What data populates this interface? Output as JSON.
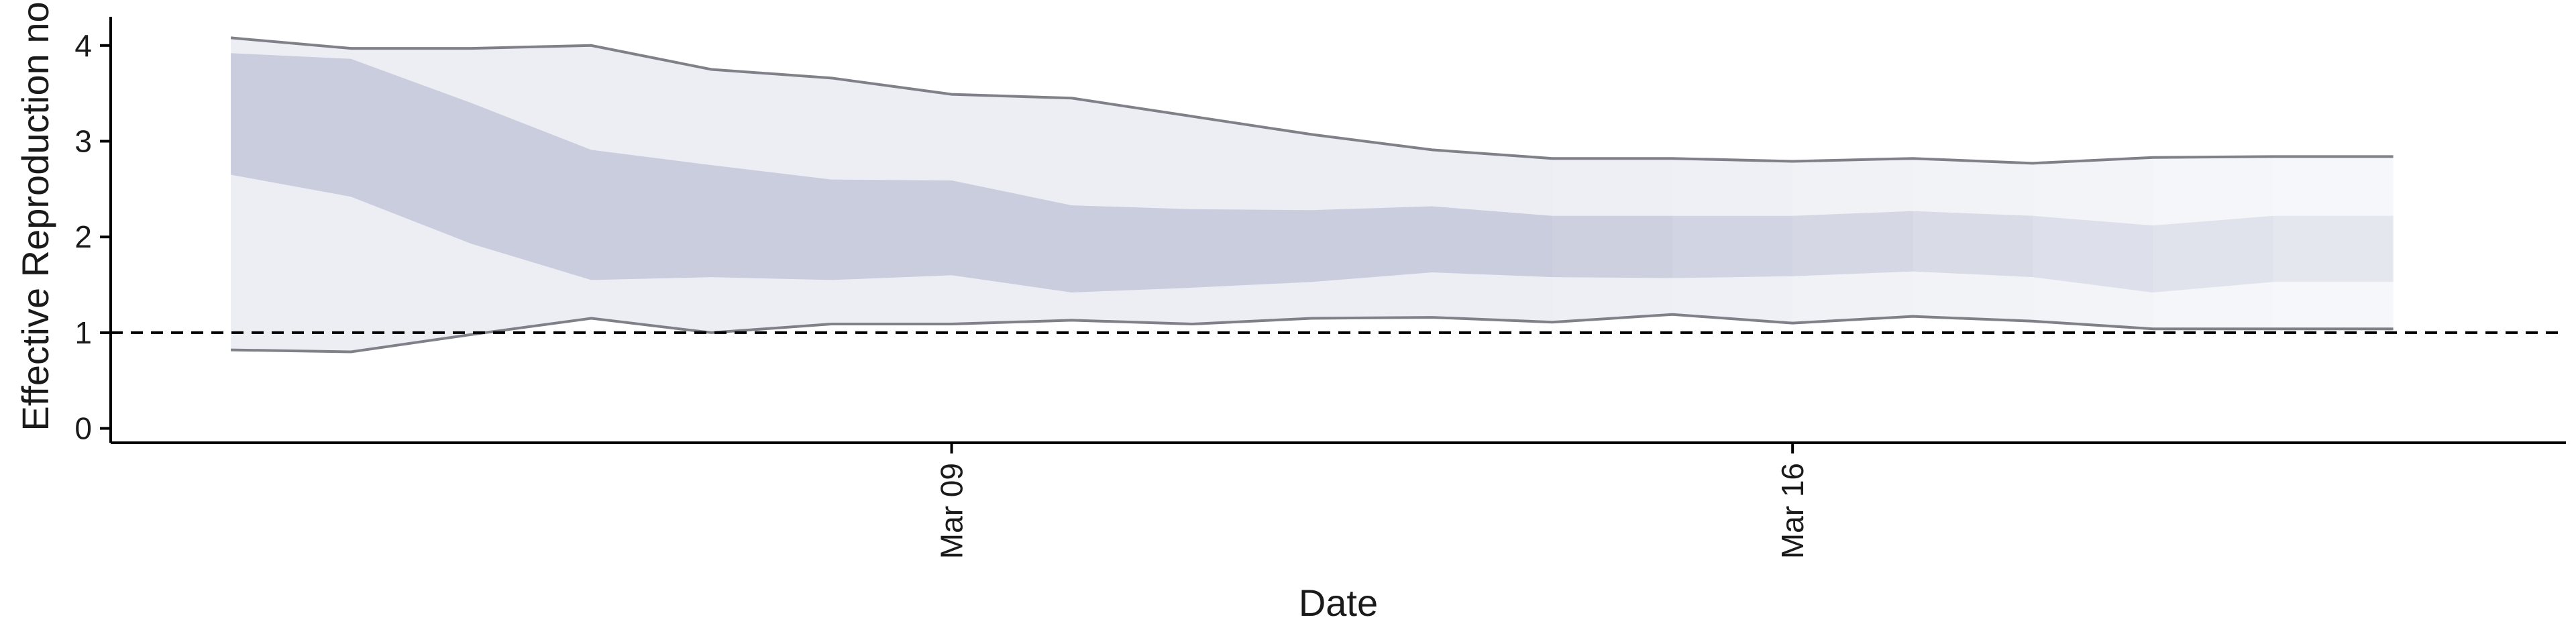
{
  "chart_data": {
    "type": "area",
    "xlabel": "Date",
    "ylabel": "Effective Reproduction no",
    "ylim": [
      -0.15,
      4.3
    ],
    "xlim": [
      "2020-03-02T00:00",
      "2020-03-22T10:30"
    ],
    "grid": false,
    "legend": "none",
    "y_ticks": [
      0,
      1,
      2,
      3,
      4
    ],
    "x_ticks": [
      {
        "date": "2020-03-09",
        "label": "Mar 09"
      },
      {
        "date": "2020-03-16",
        "label": "Mar 16"
      }
    ],
    "reference_line": {
      "y": 1,
      "style": "dashed"
    },
    "dates": [
      "2020-03-03",
      "2020-03-04",
      "2020-03-05",
      "2020-03-06",
      "2020-03-07",
      "2020-03-08",
      "2020-03-09",
      "2020-03-10",
      "2020-03-11",
      "2020-03-12",
      "2020-03-13",
      "2020-03-14",
      "2020-03-15",
      "2020-03-16",
      "2020-03-17",
      "2020-03-18",
      "2020-03-19",
      "2020-03-20",
      "2020-03-21"
    ],
    "outer_upper": [
      4.08,
      3.97,
      3.97,
      4.0,
      3.75,
      3.66,
      3.49,
      3.45,
      3.26,
      3.07,
      2.91,
      2.82,
      2.82,
      2.79,
      2.82,
      2.77,
      2.83,
      2.84,
      2.84
    ],
    "outer_lower": [
      0.82,
      0.8,
      0.98,
      1.15,
      1.0,
      1.09,
      1.09,
      1.13,
      1.09,
      1.15,
      1.16,
      1.11,
      1.19,
      1.1,
      1.17,
      1.12,
      1.04,
      1.04,
      1.04
    ],
    "inner_upper": [
      3.92,
      3.86,
      3.4,
      2.91,
      2.75,
      2.6,
      2.59,
      2.33,
      2.29,
      2.28,
      2.32,
      2.22,
      2.22,
      2.22,
      2.27,
      2.22,
      2.12,
      2.22,
      2.22
    ],
    "inner_lower": [
      2.65,
      2.42,
      1.93,
      1.55,
      1.58,
      1.55,
      1.6,
      1.42,
      1.47,
      1.53,
      1.63,
      1.58,
      1.57,
      1.59,
      1.64,
      1.58,
      1.42,
      1.53,
      1.53
    ],
    "colors": {
      "outer_band": "#eceef4",
      "inner_band": "#c9cddd",
      "outer_line": "#808089",
      "axis": "#000000"
    }
  }
}
